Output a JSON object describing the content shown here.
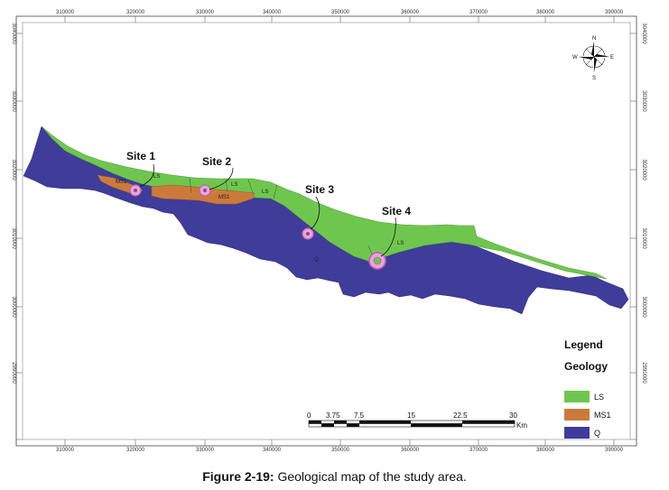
{
  "map": {
    "x_ticks": [
      "310000",
      "320000",
      "330000",
      "340000",
      "350000",
      "360000",
      "370000",
      "380000",
      "390000"
    ],
    "y_ticks": [
      "3030000",
      "3020000",
      "3010000",
      "3000000",
      "2990000"
    ],
    "y_ticks_right": [
      "3040000",
      "3030000",
      "3020000",
      "3010000",
      "3000000",
      "2990000"
    ],
    "y_ticks_left": [
      "3040000",
      "3030000",
      "3020000",
      "3010000",
      "3000000",
      "2990000"
    ]
  },
  "sites": [
    {
      "label": "Site 1"
    },
    {
      "label": "Site 2"
    },
    {
      "label": "Site 3"
    },
    {
      "label": "Site 4"
    }
  ],
  "unit_labels": {
    "ls": "LS",
    "ms1": "MS1",
    "q": "Q"
  },
  "legend": {
    "title": "Legend",
    "subtitle": "Geology",
    "items": [
      {
        "label": "LS",
        "color": "#6fc64f"
      },
      {
        "label": "MS1",
        "color": "#cc7a3c"
      },
      {
        "label": "Q",
        "color": "#3f3c9a"
      }
    ]
  },
  "scale_bar": {
    "labels": [
      "0",
      "3.75",
      "7.5",
      "15",
      "22.5",
      "30"
    ],
    "unit": "Km"
  },
  "compass": {
    "n": "N",
    "s": "S",
    "e": "E",
    "w": "W"
  },
  "caption": {
    "figure": "Figure 2-19:",
    "text": " Geological map of the study area."
  }
}
